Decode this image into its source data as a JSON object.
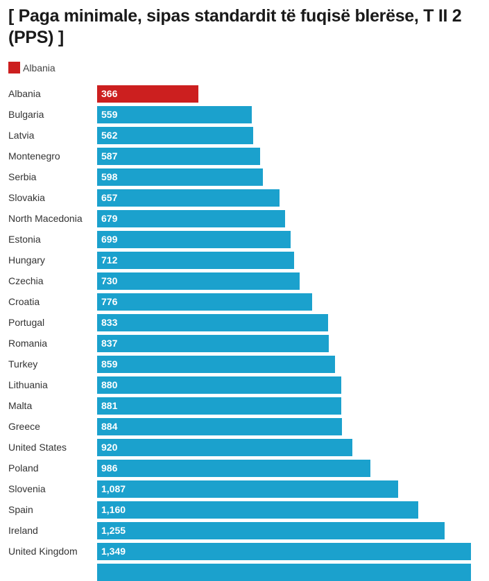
{
  "chart_data": {
    "type": "bar",
    "orientation": "horizontal",
    "title": "[ Paga minimale, sipas standardit të fuqisë blerëse, T II 2",
    "title_line2": "(PPS) ]",
    "legend": [
      {
        "name": "Albania",
        "color": "#cc1f1f"
      }
    ],
    "legend_position": "top-left",
    "colors": {
      "highlight": "#cc1f1f",
      "default": "#1ba1cd"
    },
    "highlight_category": "Albania",
    "categories": [
      "Albania",
      "Bulgaria",
      "Latvia",
      "Montenegro",
      "Serbia",
      "Slovakia",
      "North Macedonia",
      "Estonia",
      "Hungary",
      "Czechia",
      "Croatia",
      "Portugal",
      "Romania",
      "Turkey",
      "Lithuania",
      "Malta",
      "Greece",
      "United States",
      "Poland",
      "Slovenia",
      "Spain",
      "Ireland",
      "United Kingdom"
    ],
    "values": [
      366,
      559,
      562,
      587,
      598,
      657,
      679,
      699,
      712,
      730,
      776,
      833,
      837,
      859,
      880,
      881,
      884,
      920,
      986,
      1087,
      1160,
      1255,
      1349
    ],
    "value_labels": [
      "366",
      "559",
      "562",
      "587",
      "598",
      "657",
      "679",
      "699",
      "712",
      "730",
      "776",
      "833",
      "837",
      "859",
      "880",
      "881",
      "884",
      "920",
      "986",
      "1,087",
      "1,160",
      "1,255",
      "1,349"
    ],
    "xlabel": "",
    "ylabel": "",
    "grid": false,
    "xlim": [
      0,
      1349
    ]
  }
}
